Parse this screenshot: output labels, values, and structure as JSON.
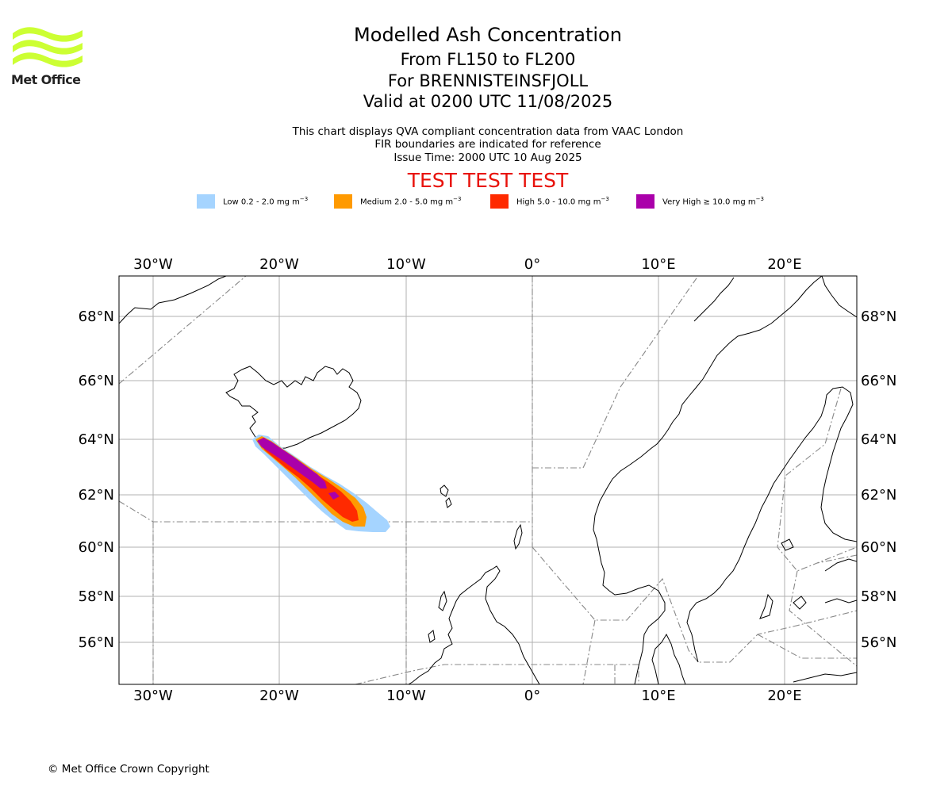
{
  "header": {
    "title": "Modelled Ash Concentration",
    "levels": "From FL150 to FL200",
    "volcano": "For BRENNISTEINSFJOLL",
    "valid": "Valid at 0200 UTC 11/08/2025",
    "info_lines": [
      "This chart displays QVA compliant concentration data from VAAC London",
      "FIR boundaries are indicated for reference",
      "Issue Time: 2000 UTC 10 Aug 2025"
    ],
    "test_banner": "TEST TEST TEST",
    "test_color": "#e8120b"
  },
  "logo": {
    "text": "Met Office",
    "color": "#ccff33",
    "icon": "met-office-wave-logo"
  },
  "legend": [
    {
      "label": "Low 0.2 - 2.0 mg m",
      "color": "#a5d4ff"
    },
    {
      "label": "Medium 2.0 - 5.0 mg m",
      "color": "#ff9a00"
    },
    {
      "label": "High 5.0 - 10.0 mg m",
      "color": "#ff2a00"
    },
    {
      "label": "Very High ≥ 10.0 mg m",
      "color": "#aa00aa"
    }
  ],
  "legend_unit_sup": "−3",
  "map": {
    "lon_ticks": [
      "30°W",
      "20°W",
      "10°W",
      "0°",
      "10°E",
      "20°E"
    ],
    "lat_ticks": [
      "68°N",
      "66°N",
      "64°N",
      "62°N",
      "60°N",
      "58°N",
      "56°N"
    ],
    "gridlines": true
  },
  "footer": {
    "copyright": "© Met Office Crown Copyright"
  }
}
